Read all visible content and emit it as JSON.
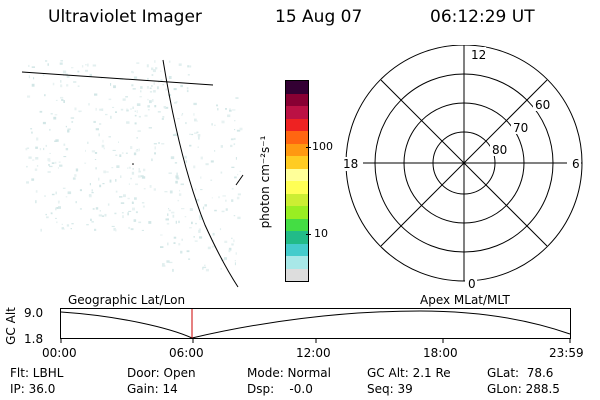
{
  "header": {
    "title": "Ultraviolet Imager",
    "date": "15 Aug 07",
    "time": "06:12:29 UT"
  },
  "colorbar": {
    "label": "photon cm⁻²s⁻¹",
    "tick_100": "100",
    "tick_10": "10",
    "colors": [
      "#dddddd",
      "#a8e8e8",
      "#44cccc",
      "#22bb88",
      "#44dd44",
      "#99ee22",
      "#ccee33",
      "#ffff55",
      "#ffff99",
      "#ffcc22",
      "#ff9911",
      "#ff6611",
      "#ee2222",
      "#bb1144",
      "#880033",
      "#330033"
    ]
  },
  "polar_plot": {
    "mlt_top": "12",
    "mlt_bottom": "0",
    "mlt_left": "18",
    "mlt_right": "6",
    "lat_60": "60",
    "lat_70": "70",
    "lat_80": "80"
  },
  "timeline": {
    "left_label": "Geographic Lat/Lon",
    "right_label": "Apex MLat/MLT",
    "ylabel": "GC Alt",
    "y_max": "9.0",
    "y_min": "1.8",
    "ticks": [
      "00:00",
      "06:00",
      "12:00",
      "18:00",
      "23:59"
    ],
    "marker_color": "#cc0000"
  },
  "info": {
    "flt": "Flt: LBHL",
    "ip": "IP: 36.0",
    "door": "Door: Open",
    "gain": "Gain: 14",
    "mode": "Mode: Normal",
    "dsp": "Dsp:    -0.0",
    "gc_alt": "GC Alt: 2.1 Re",
    "seq": "Seq: 39",
    "glat": "GLat:  78.6",
    "glon": "GLon: 288.5"
  }
}
